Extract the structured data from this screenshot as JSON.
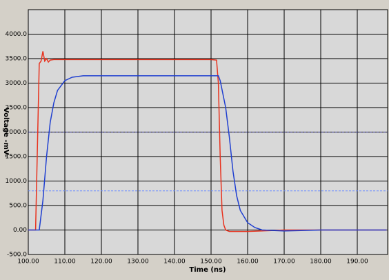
{
  "chart_data": {
    "type": "line",
    "xlabel": "Time (ns)",
    "ylabel": "Voltage -mV-",
    "xlim": [
      100,
      198.3
    ],
    "ylim": [
      -500,
      4500
    ],
    "xticks": [
      {
        "value": 100,
        "label": "100.00"
      },
      {
        "value": 110,
        "label": "110.00"
      },
      {
        "value": 120,
        "label": "120.00"
      },
      {
        "value": 130,
        "label": "130.00"
      },
      {
        "value": 140,
        "label": "140.00"
      },
      {
        "value": 150,
        "label": "150.00"
      },
      {
        "value": 160,
        "label": "160.00"
      },
      {
        "value": 170,
        "label": "170.00"
      },
      {
        "value": 180,
        "label": "180.00"
      },
      {
        "value": 190,
        "label": "190.00"
      }
    ],
    "yticks": [
      {
        "value": -500,
        "label": "-500.0"
      },
      {
        "value": 0,
        "label": "0.00"
      },
      {
        "value": 500,
        "label": "500.0"
      },
      {
        "value": 1000,
        "label": "1000.0"
      },
      {
        "value": 1500,
        "label": "1500.0"
      },
      {
        "value": 2000,
        "label": "2000.0"
      },
      {
        "value": 2500,
        "label": "2500.0"
      },
      {
        "value": 3000,
        "label": "3000.0"
      },
      {
        "value": 3500,
        "label": "3500.0"
      },
      {
        "value": 4000,
        "label": "4000.0"
      }
    ],
    "grid": true,
    "reference_lines": [
      {
        "value": 2000,
        "color": "#1a1a80"
      },
      {
        "value": 800,
        "color": "#6a8cff"
      }
    ],
    "series": [
      {
        "color": "#e8321e",
        "x": [
          100,
          102,
          102.5,
          103,
          103.5,
          104,
          104.5,
          105,
          105.5,
          106,
          107,
          110,
          130,
          150,
          151.5,
          152,
          152.5,
          153,
          153.5,
          154,
          155,
          160,
          170,
          198
        ],
        "values": [
          0,
          0,
          1700,
          3400,
          3450,
          3650,
          3450,
          3500,
          3430,
          3470,
          3480,
          3480,
          3480,
          3480,
          3470,
          3000,
          1500,
          400,
          100,
          0,
          -30,
          -30,
          0,
          0
        ]
      },
      {
        "color": "#1f3fd0",
        "x": [
          100,
          103,
          104,
          105,
          106,
          107,
          108,
          110,
          112,
          115,
          130,
          151,
          152,
          152.5,
          154,
          155,
          156,
          157,
          158,
          160,
          162,
          164,
          170,
          180,
          198
        ],
        "values": [
          0,
          0,
          600,
          1500,
          2200,
          2600,
          2850,
          3050,
          3120,
          3150,
          3150,
          3150,
          3150,
          3050,
          2500,
          1900,
          1200,
          700,
          400,
          150,
          50,
          0,
          -20,
          0,
          0
        ]
      }
    ]
  }
}
